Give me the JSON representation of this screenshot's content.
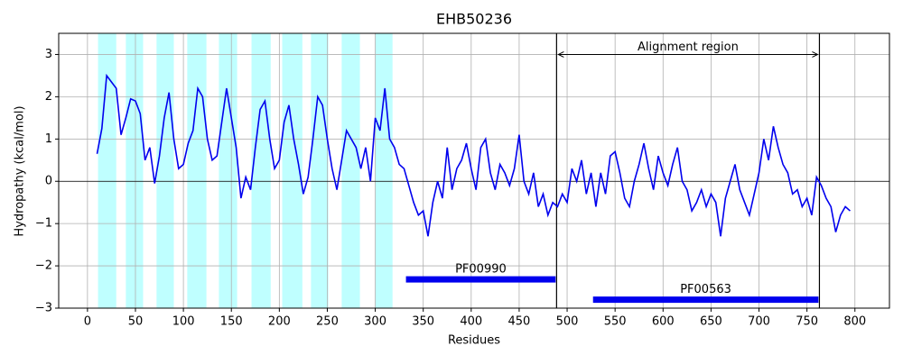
{
  "chart_data": {
    "type": "line",
    "title": "EHB50236",
    "x_label": "Residues",
    "y_label": "Hydropathy (kcal/mol)",
    "xlim": [
      -30,
      836
    ],
    "ylim": [
      -3,
      3.5
    ],
    "xticks": [
      0,
      50,
      100,
      150,
      200,
      250,
      300,
      350,
      400,
      450,
      500,
      550,
      600,
      650,
      700,
      750,
      800
    ],
    "yticks": [
      {
        "value": -3,
        "label": "−3"
      },
      {
        "value": -2,
        "label": "−2"
      },
      {
        "value": -1,
        "label": "−1"
      },
      0,
      1,
      2,
      3
    ],
    "grid": true,
    "color": "#0000ee",
    "hline": 0,
    "highlight_color": "#bfffff",
    "highlight_regions": [
      [
        11,
        30
      ],
      [
        40,
        58
      ],
      [
        72,
        90
      ],
      [
        104,
        124
      ],
      [
        137,
        156
      ],
      [
        171,
        191
      ],
      [
        203,
        224
      ],
      [
        233,
        251
      ],
      [
        265,
        284
      ],
      [
        300,
        318
      ]
    ],
    "x": [
      10,
      15,
      20,
      25,
      30,
      35,
      40,
      45,
      50,
      55,
      60,
      65,
      70,
      75,
      80,
      85,
      90,
      95,
      100,
      105,
      110,
      115,
      120,
      125,
      130,
      135,
      140,
      145,
      150,
      155,
      160,
      165,
      170,
      175,
      180,
      185,
      190,
      195,
      200,
      205,
      210,
      215,
      220,
      225,
      230,
      235,
      240,
      245,
      250,
      255,
      260,
      265,
      270,
      275,
      280,
      285,
      290,
      295,
      300,
      305,
      310,
      315,
      320,
      325,
      330,
      335,
      340,
      345,
      350,
      355,
      360,
      365,
      370,
      375,
      380,
      385,
      390,
      395,
      400,
      405,
      410,
      415,
      420,
      425,
      430,
      435,
      440,
      445,
      450,
      455,
      460,
      465,
      470,
      475,
      480,
      485,
      490,
      495,
      500,
      505,
      510,
      515,
      520,
      525,
      530,
      535,
      540,
      545,
      550,
      555,
      560,
      565,
      570,
      575,
      580,
      585,
      590,
      595,
      600,
      605,
      610,
      615,
      620,
      625,
      630,
      635,
      640,
      645,
      650,
      655,
      660,
      665,
      670,
      675,
      680,
      685,
      690,
      695,
      700,
      705,
      710,
      715,
      720,
      725,
      730,
      735,
      740,
      745,
      750,
      755,
      760,
      765,
      770,
      775,
      780,
      785,
      790,
      795
    ],
    "values": [
      0.65,
      1.25,
      2.5,
      2.35,
      2.2,
      1.1,
      1.5,
      1.95,
      1.9,
      1.6,
      0.5,
      0.8,
      -0.05,
      0.6,
      1.5,
      2.1,
      1.0,
      0.3,
      0.4,
      0.9,
      1.2,
      2.2,
      2.0,
      1.0,
      0.5,
      0.6,
      1.4,
      2.2,
      1.5,
      0.8,
      -0.4,
      0.1,
      -0.2,
      0.8,
      1.7,
      1.9,
      1.0,
      0.3,
      0.5,
      1.4,
      1.8,
      1.0,
      0.4,
      -0.3,
      0.1,
      1.0,
      2.0,
      1.8,
      1.0,
      0.3,
      -0.2,
      0.5,
      1.2,
      1.0,
      0.8,
      0.3,
      0.8,
      0.0,
      1.5,
      1.2,
      2.2,
      1.0,
      0.8,
      0.4,
      0.3,
      -0.1,
      -0.5,
      -0.8,
      -0.7,
      -1.3,
      -0.5,
      0.0,
      -0.4,
      0.8,
      -0.2,
      0.3,
      0.5,
      0.9,
      0.3,
      -0.2,
      0.8,
      1.0,
      0.2,
      -0.2,
      0.4,
      0.2,
      -0.1,
      0.3,
      1.1,
      0.0,
      -0.3,
      0.2,
      -0.6,
      -0.3,
      -0.8,
      -0.5,
      -0.6,
      -0.3,
      -0.5,
      0.3,
      0.0,
      0.5,
      -0.3,
      0.2,
      -0.6,
      0.2,
      -0.3,
      0.6,
      0.7,
      0.2,
      -0.4,
      -0.6,
      0.0,
      0.4,
      0.9,
      0.3,
      -0.2,
      0.6,
      0.2,
      -0.1,
      0.4,
      0.8,
      0.0,
      -0.2,
      -0.7,
      -0.5,
      -0.2,
      -0.6,
      -0.3,
      -0.5,
      -1.3,
      -0.4,
      0.0,
      0.4,
      -0.2,
      -0.5,
      -0.8,
      -0.3,
      0.2,
      1.0,
      0.5,
      1.3,
      0.8,
      0.4,
      0.2,
      -0.3,
      -0.2,
      -0.6,
      -0.4,
      -0.8,
      0.1,
      -0.1,
      -0.4,
      -0.6,
      -1.2,
      -0.8,
      -0.6,
      -0.7
    ],
    "region_lines": [
      489,
      763
    ],
    "annotation": {
      "text": "Alignment region",
      "start": 489,
      "end": 763,
      "y": 3
    },
    "domains": [
      {
        "label": "PF00990",
        "start": 332,
        "end": 488,
        "y": -2.32
      },
      {
        "label": "PF00563",
        "start": 527,
        "end": 762,
        "y": -2.8
      }
    ]
  }
}
